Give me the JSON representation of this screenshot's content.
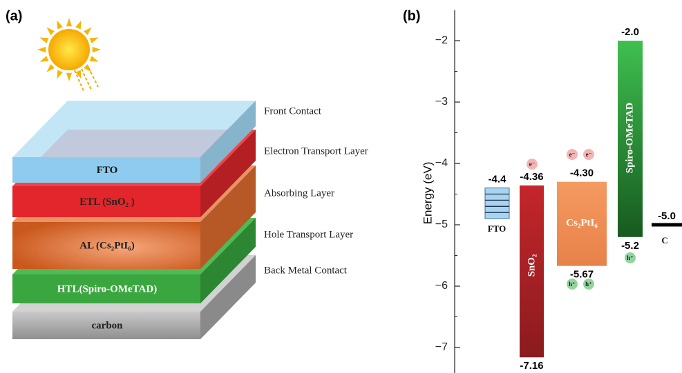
{
  "panel_a": {
    "label": "(a)",
    "layers": [
      {
        "label": "FTO"
      },
      {
        "label": "ETL (SnO₂ )"
      },
      {
        "label": "AL (Cs₂PtI₆)"
      },
      {
        "label": "HTL(Spiro-OMeTAD)"
      },
      {
        "label": "carbon"
      }
    ],
    "annotations": [
      "Front Contact",
      "Electron Transport Layer",
      "Absorbing Layer",
      "Hole Transport Layer",
      "Back Metal Contact"
    ]
  },
  "chart_data": {
    "type": "band",
    "label": "(b)",
    "ylabel": "Energy (eV)",
    "ylim": [
      -7.42,
      -1.5
    ],
    "yticks": [
      {
        "value": -2,
        "label": "−2"
      },
      {
        "value": -3,
        "label": "−3"
      },
      {
        "value": -4,
        "label": "−4"
      },
      {
        "value": -5,
        "label": "−5"
      },
      {
        "value": -6,
        "label": "−6"
      },
      {
        "value": -7,
        "label": "−7"
      }
    ],
    "yminorticks": [
      -2.5,
      -3.5,
      -4.5,
      -5.5,
      -6.5
    ],
    "bars": [
      {
        "name": "FTO",
        "top": -4.4,
        "bottom": -4.9,
        "top_label": "-4.4",
        "color": "#a9d3ee"
      },
      {
        "name": "SnO₂",
        "top": -4.36,
        "bottom": -7.16,
        "top_label": "-4.36",
        "bottom_label": "-7.16",
        "color": "#b22226"
      },
      {
        "name": "Cs₂PtI₆",
        "top": -4.3,
        "bottom": -5.67,
        "top_label": "-4.30",
        "bottom_label": "-5.67",
        "color": "#f0955a"
      },
      {
        "name": "Spiro-OMeTAD",
        "top": -2.0,
        "bottom": -5.2,
        "top_label": "-2.0",
        "bottom_label": "-5.2",
        "color": "#33a843"
      },
      {
        "name": "C",
        "top": -5.0,
        "top_label": "-5.0",
        "color": "#000000"
      }
    ],
    "electron_label": "e⁻",
    "hole_label": "h⁺"
  }
}
